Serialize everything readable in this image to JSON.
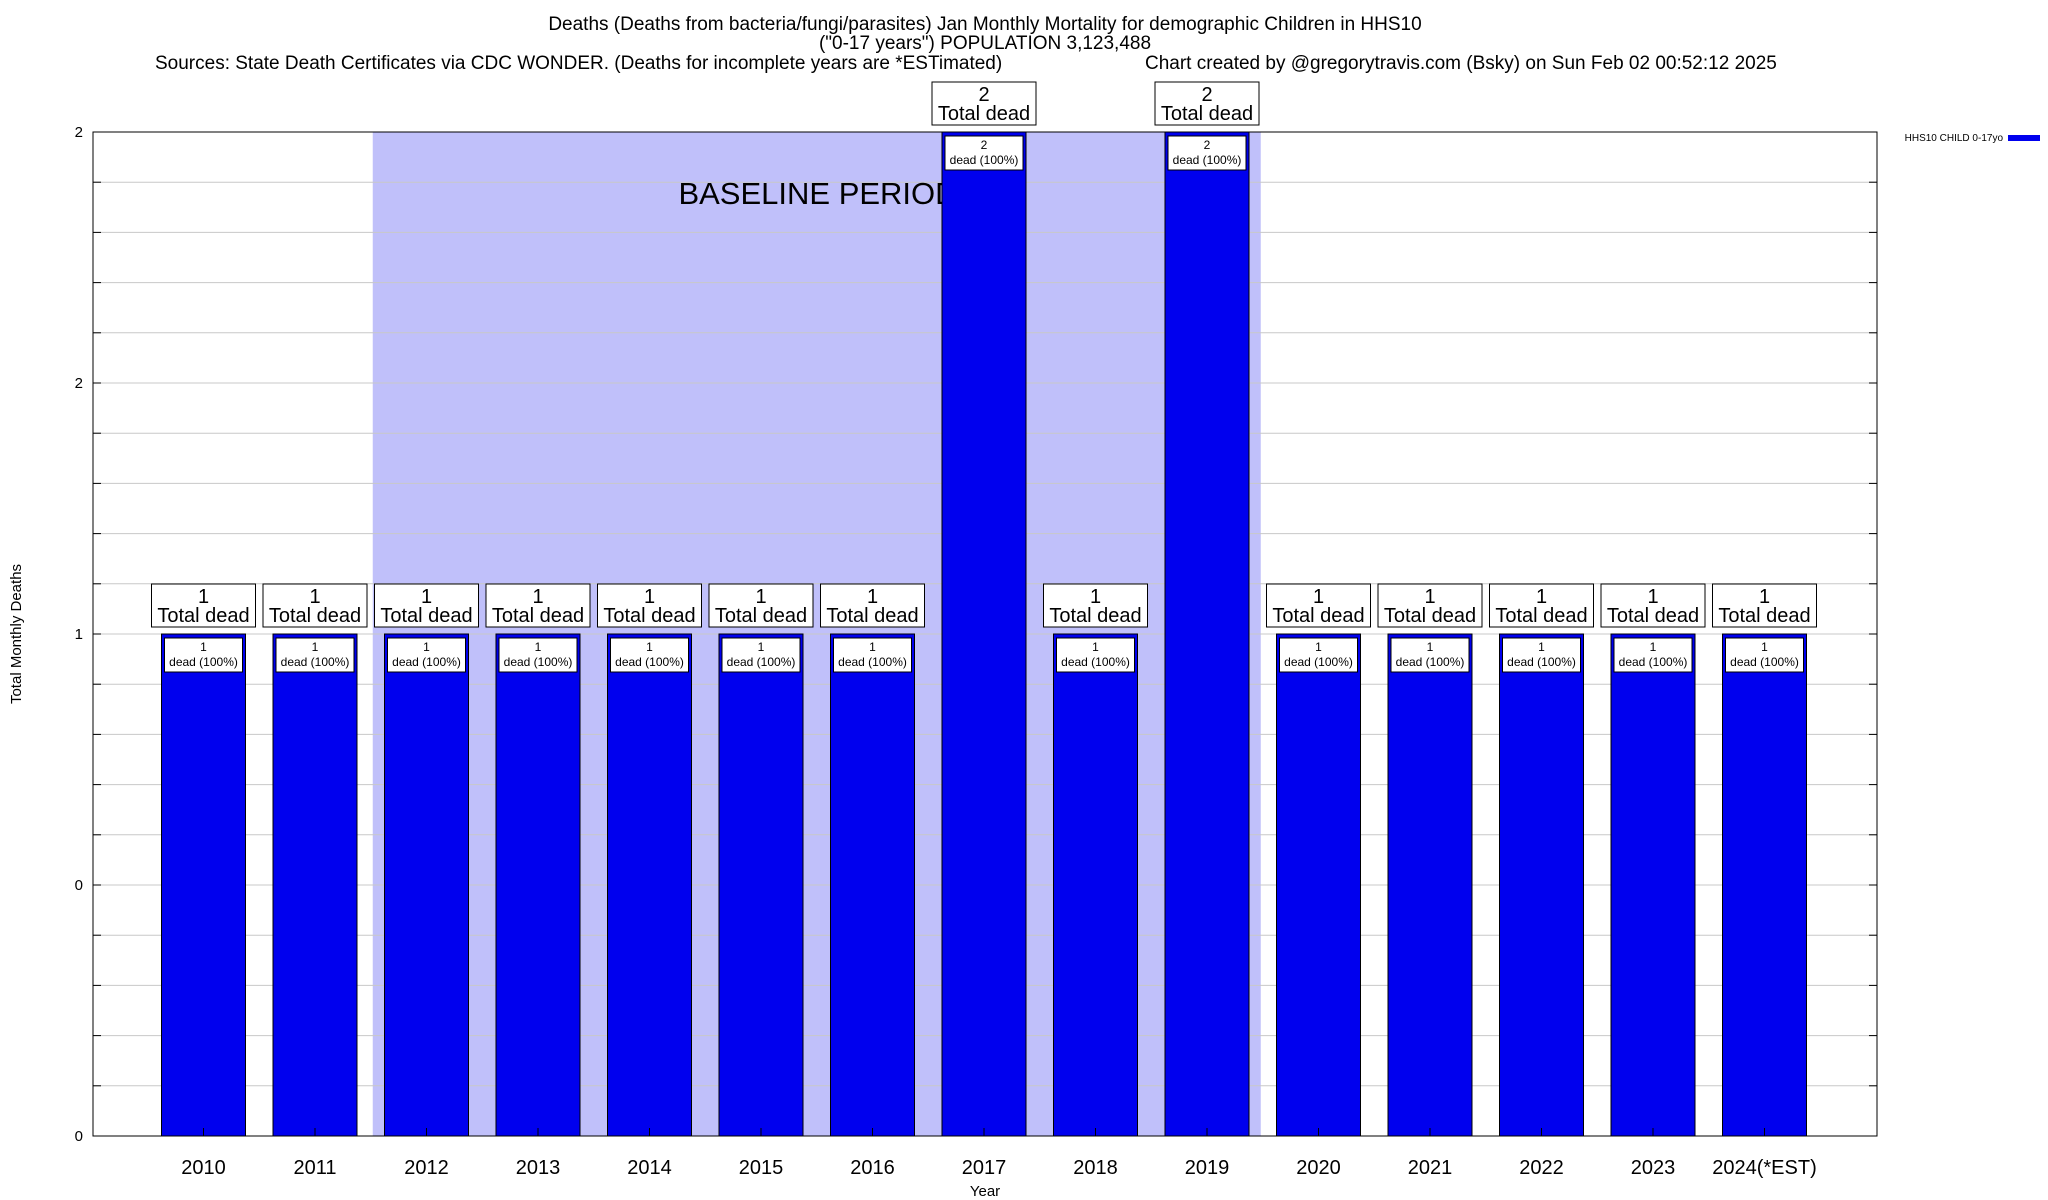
{
  "header": {
    "title_line1": "Deaths (Deaths from bacteria/fungi/parasites) Jan Monthly Mortality for demographic Children in HHS10",
    "title_line2": "(\"0-17 years\") POPULATION 3,123,488",
    "sources": "Sources: State Death Certificates via CDC WONDER. (Deaths for incomplete years are *ESTimated)",
    "credit": "Chart created by @gregorytravis.com (Bsky) on Sun Feb 02 00:52:12 2025"
  },
  "chart_data": {
    "type": "bar",
    "title": "Deaths (Deaths from bacteria/fungi/parasites) Jan Monthly Mortality for demographic Children in HHS10",
    "xlabel": "Year",
    "ylabel": "Total Monthly Deaths",
    "ylim": [
      0,
      2
    ],
    "y_tick_labels": [
      "0",
      "0",
      "1",
      "2",
      "2"
    ],
    "grid": true,
    "legend_position": "top-right",
    "categories": [
      "2010",
      "2011",
      "2012",
      "2013",
      "2014",
      "2015",
      "2016",
      "2017",
      "2018",
      "2019",
      "2020",
      "2021",
      "2022",
      "2023",
      "2024(*EST)"
    ],
    "series": [
      {
        "name": "HHS10 CHILD 0-17yo",
        "color": "#0000ee",
        "values": [
          1,
          1,
          1,
          1,
          1,
          1,
          1,
          2,
          1,
          2,
          1,
          1,
          1,
          1,
          1
        ]
      }
    ],
    "top_labels_number": [
      "1",
      "1",
      "1",
      "1",
      "1",
      "1",
      "1",
      "2",
      "1",
      "2",
      "1",
      "1",
      "1",
      "1",
      "1"
    ],
    "top_label_caption": "Total dead",
    "inner_labels_number": [
      "1",
      "1",
      "1",
      "1",
      "1",
      "1",
      "1",
      "2",
      "1",
      "2",
      "1",
      "1",
      "1",
      "1",
      "1"
    ],
    "inner_label_caption": "dead (100%)",
    "baseline": {
      "label": "BASELINE PERIOD",
      "from": "2012",
      "to": "2019",
      "color": "#c0c0fa"
    }
  }
}
